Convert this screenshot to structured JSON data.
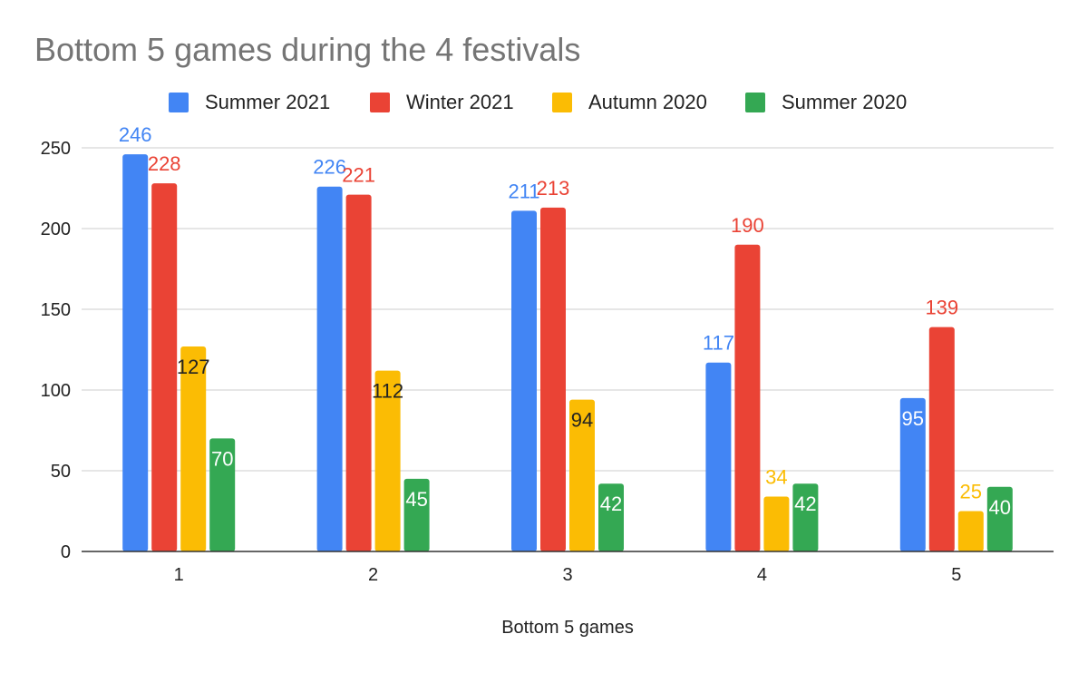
{
  "chart_data": {
    "type": "bar",
    "title": "Bottom 5 games during the 4 festivals",
    "xlabel": "Bottom 5 games",
    "ylabel": "",
    "categories": [
      "1",
      "2",
      "3",
      "4",
      "5"
    ],
    "series": [
      {
        "name": "Summer 2021",
        "color": "#4285f4",
        "values": [
          246,
          226,
          211,
          117,
          95
        ]
      },
      {
        "name": "Winter 2021",
        "color": "#ea4335",
        "values": [
          228,
          221,
          213,
          190,
          139
        ]
      },
      {
        "name": "Autumn 2020",
        "color": "#fbbc04",
        "values": [
          127,
          112,
          94,
          34,
          25
        ]
      },
      {
        "name": "Summer 2020",
        "color": "#34a853",
        "values": [
          70,
          45,
          42,
          42,
          40
        ]
      }
    ],
    "ylim": [
      0,
      250
    ],
    "yticks": [
      0,
      50,
      100,
      150,
      200,
      250
    ],
    "grid": true,
    "legend": "top"
  }
}
